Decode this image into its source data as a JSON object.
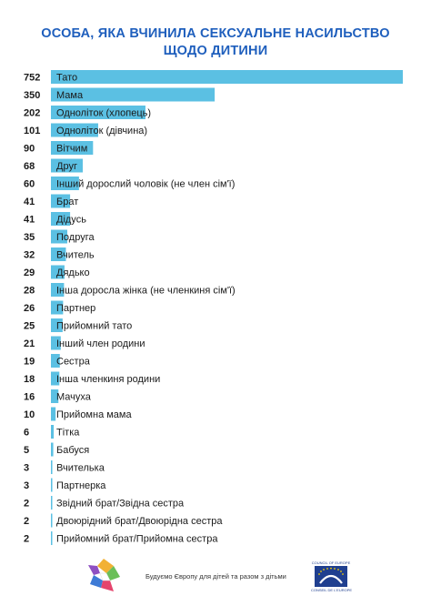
{
  "title_lines": [
    "ОСОБА, ЯКА ВЧИНИЛА СЕКСУАЛЬНЕ НАСИЛЬСТВО",
    "ЩОДО ДИТИНИ"
  ],
  "colors": {
    "title": "#1f5fbd",
    "bar": "#5bc0e3",
    "value_text": "#1a1a1a",
    "label_text": "#1a1a1a"
  },
  "chart_data": {
    "type": "bar",
    "orientation": "horizontal",
    "title": "ОСОБА, ЯКА ВЧИНИЛА СЕКСУАЛЬНЕ НАСИЛЬСТВО ЩОДО ДИТИНИ",
    "xlabel": "",
    "ylabel": "",
    "xlim": [
      0,
      752
    ],
    "grid": false,
    "categories": [
      "Тато",
      "Мама",
      "Одноліток (хлопець)",
      "Одноліток (дівчина)",
      "Вітчим",
      "Друг",
      "Інший дорослий чоловік (не член сім'ї)",
      "Брат",
      "Дідусь",
      "Подруга",
      "Вчитель",
      "Дядько",
      "Інша доросла жінка (не членкиня сім'ї)",
      "Партнер",
      "Прийомний тато",
      "Інший член родини",
      "Сестра",
      "Інша членкиня родини",
      "Мачуха",
      "Прийомна мама",
      "Тітка",
      "Бабуся",
      "Вчителька",
      "Партнерка",
      "Звідний брат/Звідна сестра",
      "Двоюрідний брат/Двоюрідна сестра",
      "Прийомний брат/Прийомна сестра"
    ],
    "values": [
      752,
      350,
      202,
      101,
      90,
      68,
      60,
      41,
      41,
      35,
      32,
      29,
      28,
      26,
      25,
      21,
      19,
      18,
      16,
      10,
      6,
      5,
      3,
      3,
      2,
      2,
      2
    ]
  },
  "footer": {
    "tagline": "Будуємо Європу для дітей та разом з дітьми",
    "coe_caption_top": "COUNCIL OF EUROPE",
    "coe_caption_bottom": "CONSEIL DE L'EUROPE",
    "left_logo_icon": "colorful-squares-logo-icon",
    "right_logo_icon": "council-of-europe-stars-logo-icon"
  }
}
